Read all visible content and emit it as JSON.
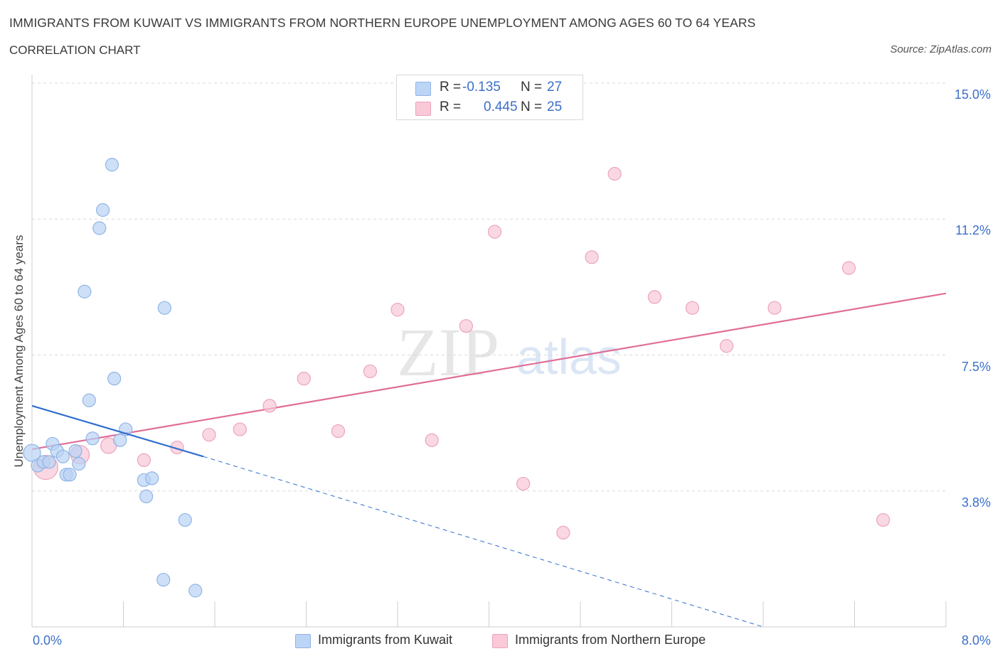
{
  "header": {
    "title": "IMMIGRANTS FROM KUWAIT VS IMMIGRANTS FROM NORTHERN EUROPE UNEMPLOYMENT AMONG AGES 60 TO 64 YEARS",
    "subtitle": "CORRELATION CHART",
    "source": "Source: ZipAtlas.com"
  },
  "watermark": {
    "zip": "ZIP",
    "atlas": "atlas"
  },
  "legend": {
    "r_label": "R =",
    "n_label": "N =",
    "entries": [
      {
        "r": "-0.135",
        "n": "27"
      },
      {
        "r": "0.445",
        "n": "25"
      }
    ]
  },
  "colors": {
    "kuwait_fill": "#b9d3f3",
    "kuwait_stroke": "#8fb4e6",
    "kuwait_line": "#2f6fcf",
    "europe_fill": "#f8c8d7",
    "europe_stroke": "#eda3bb",
    "europe_line": "#e06d97",
    "tick_text": "#3b6fc9"
  },
  "chart_data": {
    "type": "scatter",
    "title": "IMMIGRANTS FROM KUWAIT VS IMMIGRANTS FROM NORTHERN EUROPE UNEMPLOYMENT AMONG AGES 60 TO 64 YEARS",
    "xlabel": "",
    "ylabel": "Unemployment Among Ages 60 to 64 years",
    "xlim": [
      0,
      8.0
    ],
    "ylim": [
      0,
      15.0
    ],
    "x_tick_labels": [
      "0.0%",
      "8.0%"
    ],
    "y_ticks": [
      {
        "value": 15.0,
        "label": "15.0%"
      },
      {
        "value": 11.25,
        "label": "11.2%"
      },
      {
        "value": 7.5,
        "label": "7.5%"
      },
      {
        "value": 3.75,
        "label": "3.8%"
      }
    ],
    "grid": true,
    "legend_position": "top-center",
    "series": [
      {
        "name": "Immigrants from Kuwait",
        "r": -0.135,
        "n": 27,
        "points": [
          [
            0.0,
            4.8,
            12
          ],
          [
            0.05,
            4.45,
            9
          ],
          [
            0.1,
            4.55,
            9
          ],
          [
            0.15,
            4.55,
            9
          ],
          [
            0.18,
            5.05,
            9
          ],
          [
            0.22,
            4.85,
            9
          ],
          [
            0.27,
            4.7,
            9
          ],
          [
            0.3,
            4.2,
            9
          ],
          [
            0.33,
            4.2,
            9
          ],
          [
            0.38,
            4.85,
            9
          ],
          [
            0.41,
            4.5,
            9
          ],
          [
            0.46,
            9.25,
            9
          ],
          [
            0.5,
            6.25,
            9
          ],
          [
            0.53,
            5.2,
            9
          ],
          [
            0.59,
            11.0,
            9
          ],
          [
            0.62,
            11.5,
            9
          ],
          [
            0.7,
            12.75,
            9
          ],
          [
            0.72,
            6.85,
            9
          ],
          [
            0.77,
            5.15,
            9
          ],
          [
            0.82,
            5.45,
            9
          ],
          [
            0.98,
            4.05,
            9
          ],
          [
            1.0,
            3.6,
            9
          ],
          [
            1.05,
            4.1,
            9
          ],
          [
            1.15,
            1.3,
            9
          ],
          [
            1.16,
            8.8,
            9
          ],
          [
            1.34,
            2.95,
            9
          ],
          [
            1.43,
            1.0,
            9
          ]
        ],
        "trend": {
          "solid": [
            [
              0.0,
              6.1
            ],
            [
              1.5,
              4.7
            ]
          ],
          "dashed": [
            [
              1.5,
              4.7
            ],
            [
              6.4,
              0.0
            ]
          ]
        }
      },
      {
        "name": "Immigrants from Northern Europe",
        "r": 0.445,
        "n": 25,
        "points": [
          [
            0.12,
            4.4,
            17
          ],
          [
            0.42,
            4.75,
            13
          ],
          [
            0.67,
            5.0,
            11
          ],
          [
            0.98,
            4.6,
            9
          ],
          [
            1.27,
            4.95,
            9
          ],
          [
            1.55,
            5.3,
            9
          ],
          [
            1.82,
            5.45,
            9
          ],
          [
            2.08,
            6.1,
            9
          ],
          [
            2.38,
            6.85,
            9
          ],
          [
            2.68,
            5.4,
            9
          ],
          [
            2.96,
            7.05,
            9
          ],
          [
            3.2,
            8.75,
            9
          ],
          [
            3.5,
            5.15,
            9
          ],
          [
            3.8,
            8.3,
            9
          ],
          [
            4.05,
            10.9,
            9
          ],
          [
            4.3,
            3.95,
            9
          ],
          [
            4.65,
            2.6,
            9
          ],
          [
            4.9,
            10.2,
            9
          ],
          [
            5.1,
            12.5,
            9
          ],
          [
            5.45,
            9.1,
            9
          ],
          [
            5.78,
            8.8,
            9
          ],
          [
            6.08,
            7.75,
            9
          ],
          [
            6.5,
            8.8,
            9
          ],
          [
            7.15,
            9.9,
            9
          ],
          [
            7.45,
            2.95,
            9
          ]
        ],
        "trend": {
          "solid": [
            [
              0.0,
              4.9
            ],
            [
              8.0,
              9.2
            ]
          ]
        }
      }
    ]
  },
  "bottom_legend": [
    "Immigrants from Kuwait",
    "Immigrants from Northern Europe"
  ]
}
